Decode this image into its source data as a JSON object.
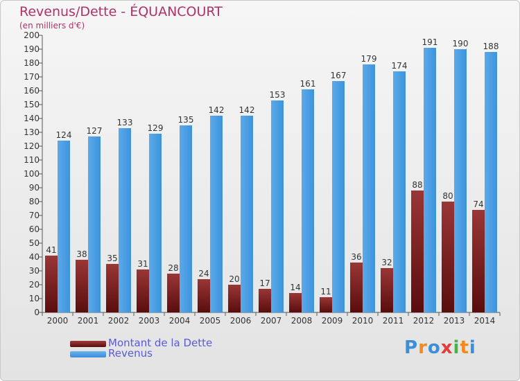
{
  "chart_data": {
    "type": "bar",
    "title": "Revenus/Dette - ÉQUANCOURT",
    "subtitle": "(en milliers d'€)",
    "categories": [
      "2000",
      "2001",
      "2002",
      "2003",
      "2004",
      "2005",
      "2006",
      "2007",
      "2008",
      "2009",
      "2010",
      "2011",
      "2012",
      "2013",
      "2014"
    ],
    "series": [
      {
        "name": "Montant de la Dette",
        "color": "#7a1a1a",
        "values": [
          41,
          38,
          35,
          31,
          28,
          24,
          20,
          17,
          14,
          11,
          36,
          32,
          88,
          80,
          74
        ]
      },
      {
        "name": "Revenus",
        "color": "#4b9ee0",
        "values": [
          124,
          127,
          133,
          129,
          135,
          142,
          142,
          153,
          161,
          167,
          179,
          174,
          191,
          190,
          188
        ]
      }
    ],
    "ylim": [
      0,
      200
    ],
    "ytick_step": 10,
    "grid": false,
    "legend": "bottom-left"
  },
  "logo": {
    "text": "Proxiti",
    "letters": [
      "P",
      "r",
      "o",
      "x",
      "i",
      "t",
      "i"
    ],
    "colors": [
      "#3b8ed8",
      "#f08a1e",
      "#3b8ed8",
      "#e43b3b",
      "#49b14a",
      "#f08a1e",
      "#3b8ed8"
    ]
  }
}
